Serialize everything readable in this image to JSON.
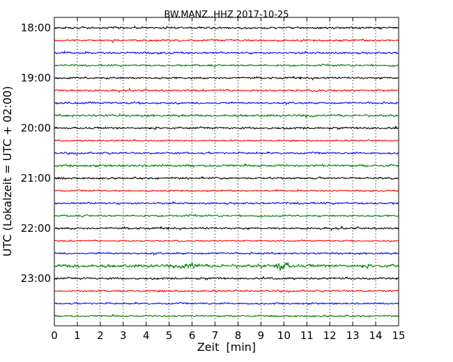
{
  "chart_data": {
    "type": "line",
    "title": "BW.MANZ..HHZ 2017-10-25",
    "xlabel": "Zeit  [min]",
    "ylabel": "UTC (Lokalzeit = UTC + 02:00)",
    "xlim": [
      0,
      15
    ],
    "x_ticks": [
      "0",
      "1",
      "2",
      "3",
      "4",
      "5",
      "6",
      "7",
      "8",
      "9",
      "10",
      "11",
      "12",
      "13",
      "14",
      "15"
    ],
    "y_tick_labels": [
      "18:00",
      "19:00",
      "20:00",
      "21:00",
      "22:00",
      "23:00"
    ],
    "grid": "vertical dotted",
    "trace_colors": [
      "#000000",
      "#ff0000",
      "#0000ff",
      "#008000"
    ],
    "traces": [
      {
        "start": "18:00",
        "amplitude": 1.0
      },
      {
        "start": "18:15",
        "amplitude": 1.0
      },
      {
        "start": "18:30",
        "amplitude": 1.0
      },
      {
        "start": "18:45",
        "amplitude": 1.0
      },
      {
        "start": "19:00",
        "amplitude": 1.0
      },
      {
        "start": "19:15",
        "amplitude": 1.0
      },
      {
        "start": "19:30",
        "amplitude": 1.0
      },
      {
        "start": "19:45",
        "amplitude": 1.2
      },
      {
        "start": "20:00",
        "amplitude": 1.0
      },
      {
        "start": "20:15",
        "amplitude": 0.8
      },
      {
        "start": "20:30",
        "amplitude": 1.0
      },
      {
        "start": "20:45",
        "amplitude": 1.2
      },
      {
        "start": "21:00",
        "amplitude": 1.0
      },
      {
        "start": "21:15",
        "amplitude": 0.8
      },
      {
        "start": "21:30",
        "amplitude": 1.0
      },
      {
        "start": "21:45",
        "amplitude": 1.0
      },
      {
        "start": "22:00",
        "amplitude": 1.0
      },
      {
        "start": "22:15",
        "amplitude": 0.7
      },
      {
        "start": "22:30",
        "amplitude": 1.0
      },
      {
        "start": "22:45",
        "amplitude": 1.6,
        "events": [
          {
            "minute": 5.9,
            "strength": 2.2
          },
          {
            "minute": 9.9,
            "strength": 3.2
          }
        ]
      },
      {
        "start": "23:00",
        "amplitude": 1.0
      },
      {
        "start": "23:15",
        "amplitude": 0.9
      },
      {
        "start": "23:30",
        "amplitude": 0.9
      },
      {
        "start": "23:45",
        "amplitude": 0.9
      }
    ]
  }
}
